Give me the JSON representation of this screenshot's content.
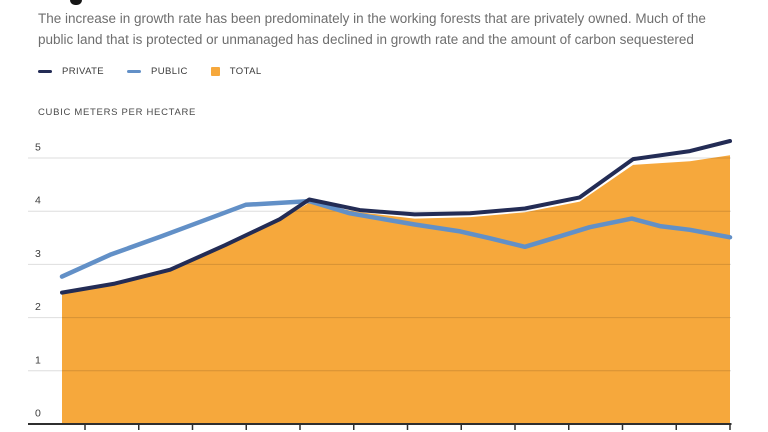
{
  "header": {
    "subtitle_line1": "The increase in growth rate has been predominately in the working forests that are privately owned. Much of the",
    "subtitle_line2": "public land that is protected or unmanaged has declined in growth rate and the amount of carbon sequestered"
  },
  "legend": {
    "items": [
      {
        "label": "PRIVATE",
        "swatch": "line",
        "color": "#232C55"
      },
      {
        "label": "PUBLIC",
        "swatch": "line",
        "color": "#6290C7"
      },
      {
        "label": "TOTAL",
        "swatch": "square",
        "color": "#F6A83C"
      }
    ]
  },
  "colors": {
    "private": "#232C55",
    "public": "#6290C7",
    "total": "#F6A83C",
    "gridline": "rgba(0,0,0,0.135)",
    "axis": "#2F2F2F",
    "tick_label": "#3C3C3C"
  },
  "chart_data": {
    "type": "area",
    "title": "",
    "ylabel": "CUBIC METERS PER HECTARE",
    "xlabel": "",
    "ylim": [
      0,
      5.5
    ],
    "yticks": [
      "0",
      "1",
      "2",
      "3",
      "4",
      "5"
    ],
    "grid": "horizontal",
    "legend_position": "top-left",
    "x_tick_count": 13,
    "x_note": "x positions normalized 0-1; x-axis year labels are cropped out of the screenshot",
    "unit": "cubic meters per hectare",
    "series": [
      {
        "name": "TOTAL",
        "kind": "area",
        "color": "#F6A83C",
        "points": [
          [
            0,
            2.45
          ],
          [
            0.079,
            2.62
          ],
          [
            0.162,
            2.88
          ],
          [
            0.244,
            3.34
          ],
          [
            0.326,
            3.83
          ],
          [
            0.37,
            4.16
          ],
          [
            0.446,
            3.98
          ],
          [
            0.528,
            3.86
          ],
          [
            0.611,
            3.89
          ],
          [
            0.693,
            3.98
          ],
          [
            0.775,
            4.18
          ],
          [
            0.855,
            4.87
          ],
          [
            0.94,
            4.94
          ],
          [
            1,
            5.05
          ]
        ]
      },
      {
        "name": "PUBLIC",
        "kind": "line",
        "color": "#6290C7",
        "points": [
          [
            0,
            2.77
          ],
          [
            0.072,
            3.18
          ],
          [
            0.147,
            3.52
          ],
          [
            0.207,
            3.8
          ],
          [
            0.275,
            4.12
          ],
          [
            0.37,
            4.19
          ],
          [
            0.431,
            3.96
          ],
          [
            0.528,
            3.75
          ],
          [
            0.596,
            3.62
          ],
          [
            0.641,
            3.49
          ],
          [
            0.693,
            3.33
          ],
          [
            0.746,
            3.53
          ],
          [
            0.79,
            3.7
          ],
          [
            0.853,
            3.86
          ],
          [
            0.895,
            3.72
          ],
          [
            0.94,
            3.65
          ],
          [
            1,
            3.51
          ]
        ]
      },
      {
        "name": "PRIVATE",
        "kind": "line",
        "color": "#232C55",
        "points": [
          [
            0,
            2.47
          ],
          [
            0.079,
            2.64
          ],
          [
            0.162,
            2.9
          ],
          [
            0.244,
            3.36
          ],
          [
            0.326,
            3.85
          ],
          [
            0.37,
            4.22
          ],
          [
            0.446,
            4.02
          ],
          [
            0.528,
            3.94
          ],
          [
            0.611,
            3.96
          ],
          [
            0.693,
            4.05
          ],
          [
            0.775,
            4.26
          ],
          [
            0.855,
            4.98
          ],
          [
            0.94,
            5.13
          ],
          [
            1,
            5.32
          ]
        ]
      }
    ]
  }
}
